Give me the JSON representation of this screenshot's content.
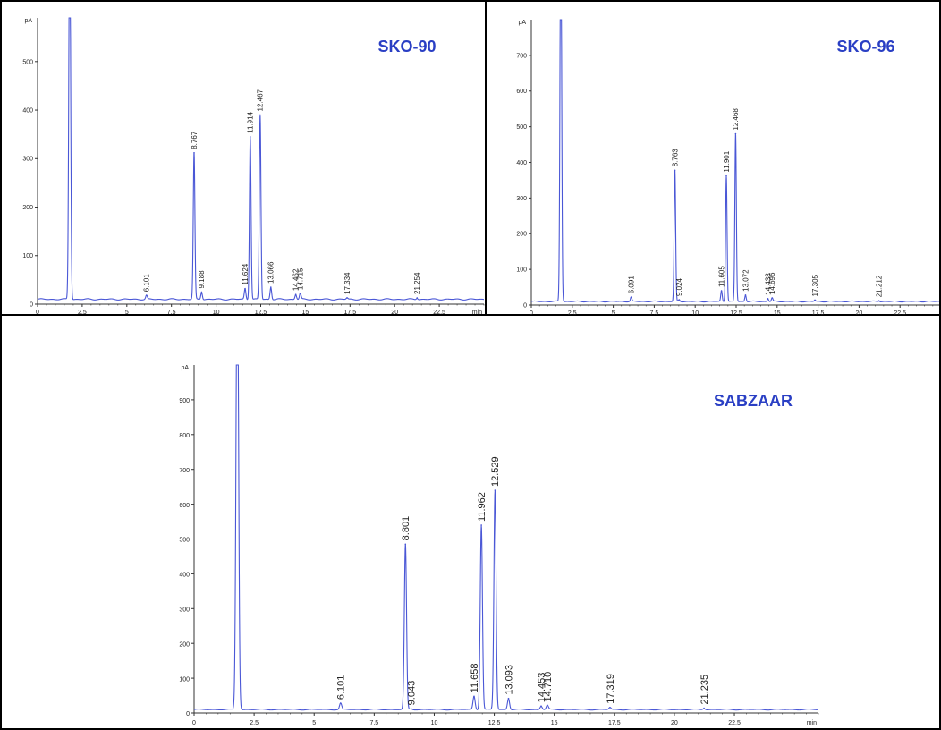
{
  "colors": {
    "trace": "#4a57d6",
    "title": "#2a3fc4",
    "axis": "#333333",
    "border": "#000000"
  },
  "chart_data": [
    {
      "type": "line",
      "title": "SKO-90",
      "ylabel": "pA",
      "xlabel": "min",
      "xlim": [
        0,
        25
      ],
      "ylim": [
        0,
        590
      ],
      "xticks": [
        "0",
        "2.5",
        "5",
        "7.5",
        "10",
        "12.5",
        "15",
        "17.5",
        "20",
        "22.5"
      ],
      "yticks": [
        "0",
        "100",
        "200",
        "300",
        "400",
        "500"
      ],
      "baseline": 10,
      "solvent_peak": {
        "x": 1.8,
        "y": 590
      },
      "peaks": [
        {
          "label": "6.101",
          "x": 6.101,
          "y": 18
        },
        {
          "label": "8.767",
          "x": 8.767,
          "y": 312
        },
        {
          "label": "9.188",
          "x": 9.188,
          "y": 25
        },
        {
          "label": "11.624",
          "x": 11.624,
          "y": 32
        },
        {
          "label": "11.914",
          "x": 11.914,
          "y": 345
        },
        {
          "label": "12.467",
          "x": 12.467,
          "y": 390
        },
        {
          "label": "13.066",
          "x": 13.066,
          "y": 35
        },
        {
          "label": "14.462",
          "x": 14.462,
          "y": 20
        },
        {
          "label": "14.715",
          "x": 14.715,
          "y": 22
        },
        {
          "label": "17.334",
          "x": 17.334,
          "y": 13
        },
        {
          "label": "21.254",
          "x": 21.254,
          "y": 13
        }
      ]
    },
    {
      "type": "line",
      "title": "SKO-96",
      "ylabel": "pA",
      "xlabel": "",
      "xlim": [
        0,
        25
      ],
      "ylim": [
        0,
        800
      ],
      "xticks": [
        "0",
        "2.5",
        "5",
        "7.5",
        "10",
        "12.5",
        "15",
        "17.5",
        "20",
        "22.5"
      ],
      "yticks": [
        "0",
        "100",
        "200",
        "300",
        "400",
        "500",
        "600",
        "700"
      ],
      "baseline": 10,
      "solvent_peak": {
        "x": 1.8,
        "y": 800
      },
      "peaks": [
        {
          "label": "6.091",
          "x": 6.091,
          "y": 22
        },
        {
          "label": "8.763",
          "x": 8.763,
          "y": 378
        },
        {
          "label": "9.024",
          "x": 9.024,
          "y": 15
        },
        {
          "label": "11.605",
          "x": 11.605,
          "y": 40
        },
        {
          "label": "11.901",
          "x": 11.901,
          "y": 362
        },
        {
          "label": "12.468",
          "x": 12.468,
          "y": 480
        },
        {
          "label": "13.072",
          "x": 13.072,
          "y": 28
        },
        {
          "label": "14.438",
          "x": 14.438,
          "y": 18
        },
        {
          "label": "14.696",
          "x": 14.696,
          "y": 20
        },
        {
          "label": "17.305",
          "x": 17.305,
          "y": 14
        },
        {
          "label": "21.212",
          "x": 21.212,
          "y": 12
        }
      ]
    },
    {
      "type": "line",
      "title": "SABZAAR",
      "ylabel": "pA",
      "xlabel": "min",
      "xlim": [
        0,
        26
      ],
      "ylim": [
        0,
        1000
      ],
      "xticks": [
        "0",
        "2.5",
        "5",
        "7.5",
        "10",
        "12.5",
        "15",
        "17.5",
        "20",
        "22.5"
      ],
      "yticks": [
        "0",
        "100",
        "200",
        "300",
        "400",
        "500",
        "600",
        "700",
        "800",
        "900"
      ],
      "baseline": 10,
      "solvent_peak": {
        "x": 1.8,
        "y": 1000
      },
      "peaks": [
        {
          "label": "6.101",
          "x": 6.101,
          "y": 28
        },
        {
          "label": "8.801",
          "x": 8.801,
          "y": 485
        },
        {
          "label": "9.043",
          "x": 9.043,
          "y": 12
        },
        {
          "label": "11.658",
          "x": 11.658,
          "y": 48
        },
        {
          "label": "11.962",
          "x": 11.962,
          "y": 540
        },
        {
          "label": "12.529",
          "x": 12.529,
          "y": 640
        },
        {
          "label": "13.093",
          "x": 13.093,
          "y": 42
        },
        {
          "label": "14.453",
          "x": 14.453,
          "y": 20
        },
        {
          "label": "14.710",
          "x": 14.71,
          "y": 22
        },
        {
          "label": "17.319",
          "x": 17.319,
          "y": 16
        },
        {
          "label": "21.235",
          "x": 21.235,
          "y": 14
        }
      ]
    }
  ]
}
